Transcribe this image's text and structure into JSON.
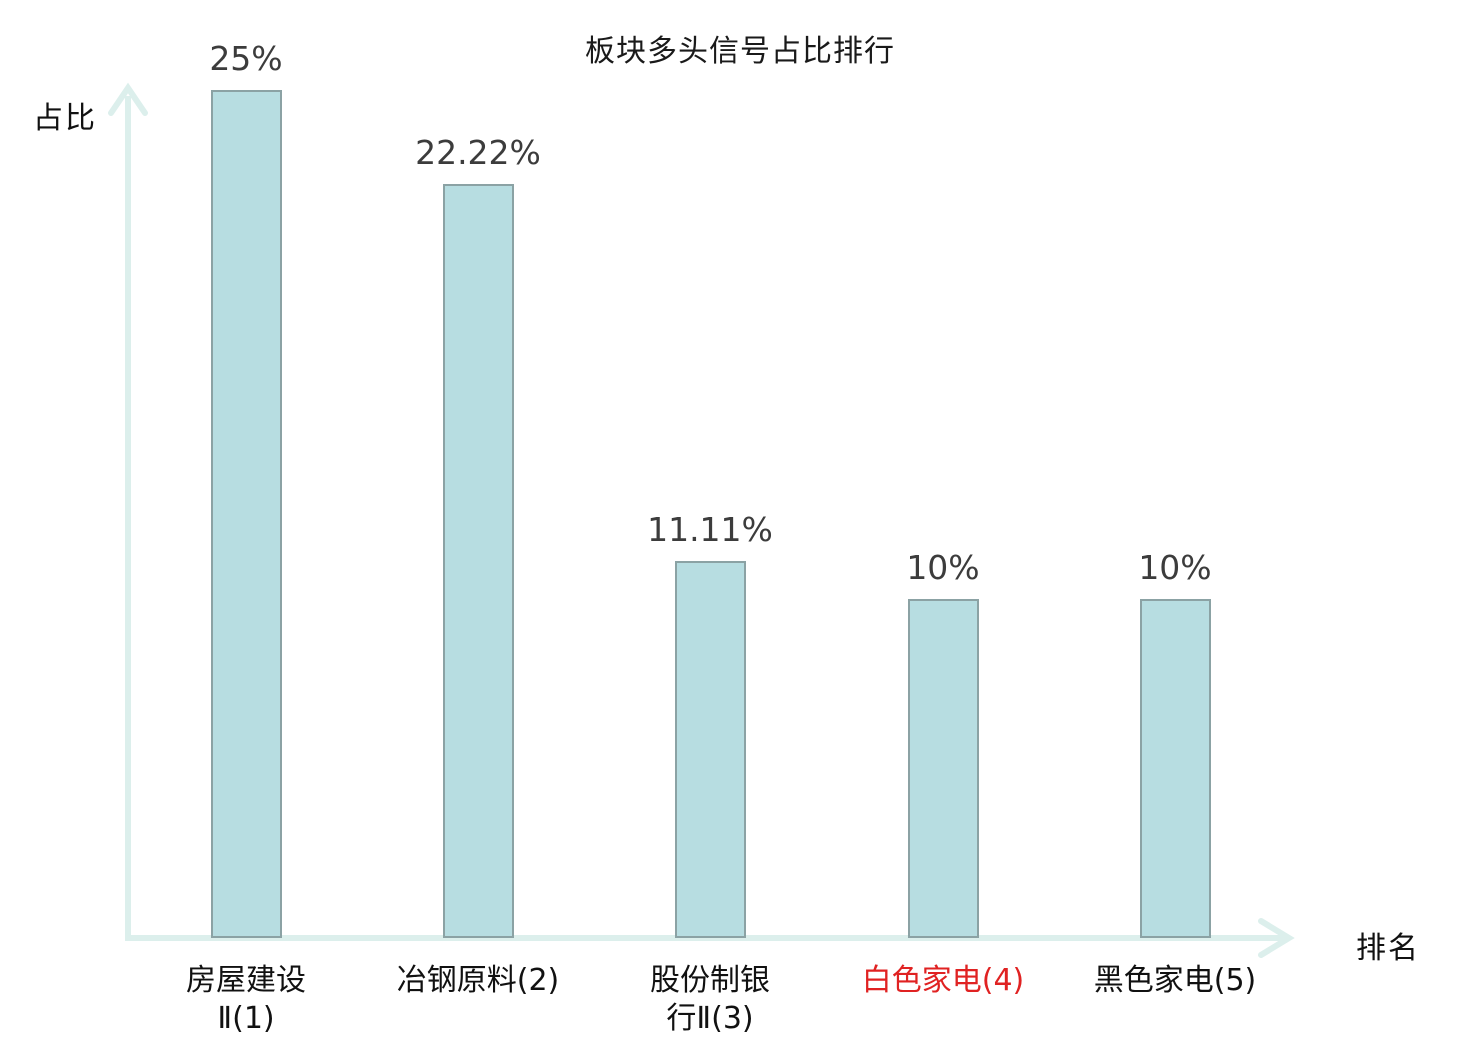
{
  "title": "板块多头信号占比排行",
  "axes": {
    "y_label": "占比",
    "x_label": "排名"
  },
  "colors": {
    "bar_fill": "#b7dde1",
    "bar_border": "#8ba2a4",
    "axis": "#dcefec",
    "value_label_text": "#3c3c3c",
    "category_text": "#111111",
    "highlight_text": "#e02222",
    "background": "#ffffff"
  },
  "chart_data": {
    "type": "bar",
    "title": "板块多头信号占比排行",
    "xlabel": "排名",
    "ylabel": "占比",
    "categories": [
      "房屋建设Ⅱ(1)",
      "冶钢原料(2)",
      "股份制银行Ⅱ(3)",
      "白色家电(4)",
      "黑色家电(5)"
    ],
    "category_display": [
      "房屋建设\nⅡ(1)",
      "冶钢原料(2)",
      "股份制银\n行Ⅱ(3)",
      "白色家电(4)",
      "黑色家电(5)"
    ],
    "values": [
      25,
      22.22,
      11.11,
      10,
      10
    ],
    "value_labels": [
      "25%",
      "22.22%",
      "11.11%",
      "10%",
      "10%"
    ],
    "highlighted_index": 3,
    "ylim": [
      0,
      26
    ],
    "grid": false,
    "legend": "none"
  }
}
